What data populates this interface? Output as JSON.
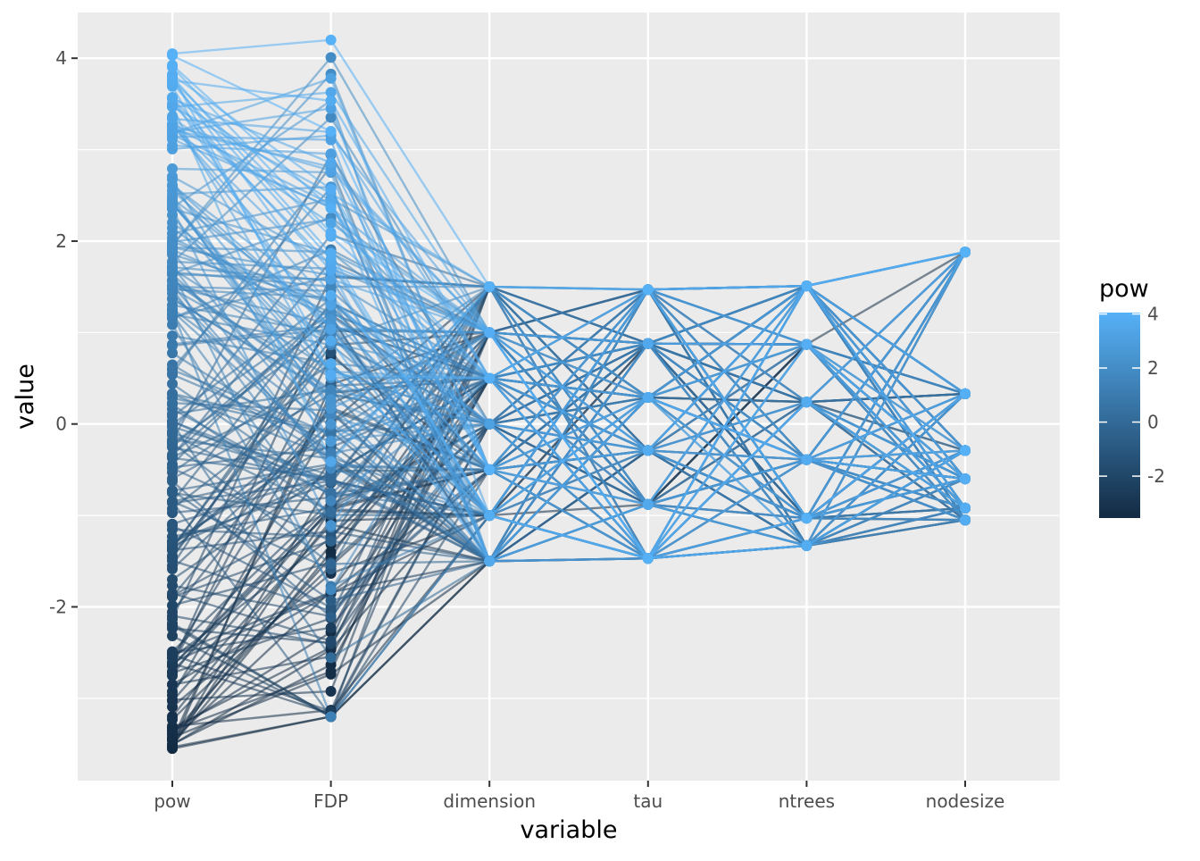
{
  "chart_data": {
    "type": "parallel-coordinates",
    "xlabel": "variable",
    "ylabel": "value",
    "categories": [
      "pow",
      "FDP",
      "dimension",
      "tau",
      "ntrees",
      "nodesize"
    ],
    "y_ticks": [
      -2,
      0,
      2,
      4
    ],
    "ylim": [
      -3.9,
      4.5
    ],
    "grid": true,
    "legend": {
      "title": "pow",
      "position": "right",
      "ticks": [
        4,
        2,
        0,
        -2
      ],
      "range": [
        -3.55,
        4.05
      ],
      "low_color": "#132B43",
      "high_color": "#56B1F7"
    },
    "levels": {
      "pow": {
        "min": -3.55,
        "max": 4.05
      },
      "FDP": {
        "min": -3.2,
        "max": 4.2
      },
      "dimension": [
        -1.5,
        -1.0,
        -0.5,
        0.0,
        0.5,
        1.0,
        1.5
      ],
      "tau": [
        -1.47,
        -0.88,
        -0.29,
        0.29,
        0.88,
        1.47
      ],
      "ntrees": [
        -1.33,
        -1.03,
        -0.39,
        0.24,
        0.87,
        1.51
      ],
      "nodesize": [
        -1.05,
        -0.92,
        -0.6,
        -0.29,
        0.33,
        1.88
      ]
    },
    "n_observations": 220,
    "panel_background": "#EBEBEB",
    "grid_color": "#FFFFFF"
  }
}
